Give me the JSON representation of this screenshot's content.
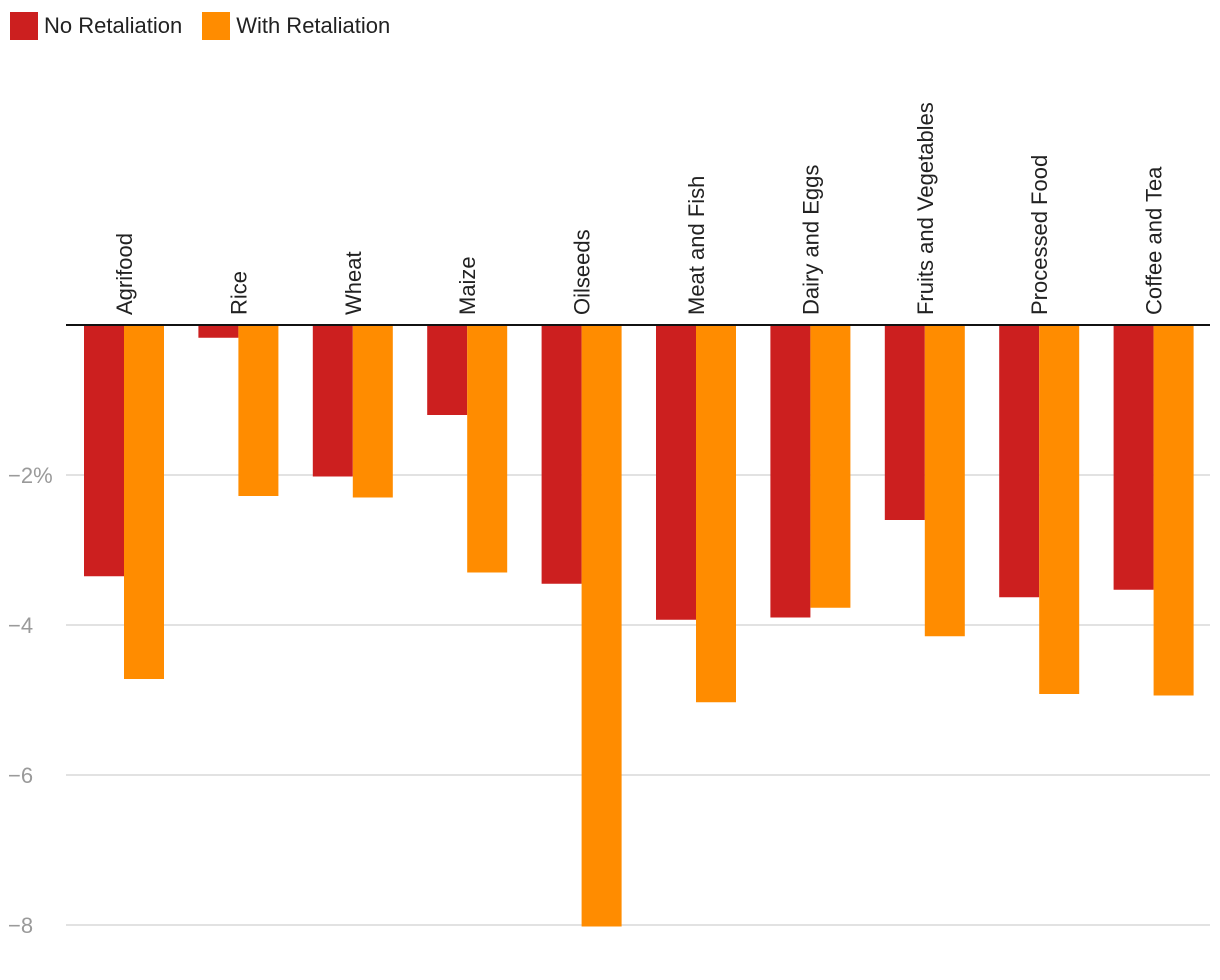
{
  "colors": {
    "no_retaliation": "#cc1f1f",
    "with_retaliation": "#ff8c00",
    "grid": "#d9d9d9",
    "zero_line": "#111111"
  },
  "chart_data": {
    "type": "bar",
    "title": "",
    "xlabel": "",
    "ylabel": "",
    "categories": [
      "Agrifood",
      "Rice",
      "Wheat",
      "Maize",
      "Oilseeds",
      "Meat and Fish",
      "Dairy and Eggs",
      "Fruits and Vegetables",
      "Processed Food",
      "Coffee and Tea"
    ],
    "series": [
      {
        "name": "No Retaliation",
        "values": [
          -3.35,
          -0.17,
          -2.02,
          -1.2,
          -3.45,
          -3.93,
          -3.9,
          -2.6,
          -3.63,
          -3.53
        ]
      },
      {
        "name": "With Retaliation",
        "values": [
          -4.72,
          -2.28,
          -2.3,
          -3.3,
          -8.02,
          -5.03,
          -3.77,
          -4.15,
          -4.92,
          -4.94
        ]
      }
    ],
    "ylim": [
      -8,
      0
    ],
    "yticks": [
      {
        "value": -2,
        "label": "−2%"
      },
      {
        "value": -4,
        "label": "−4"
      },
      {
        "value": -6,
        "label": "−6"
      },
      {
        "value": -8,
        "label": "−8"
      }
    ],
    "grid": true,
    "legend": "top-left"
  }
}
